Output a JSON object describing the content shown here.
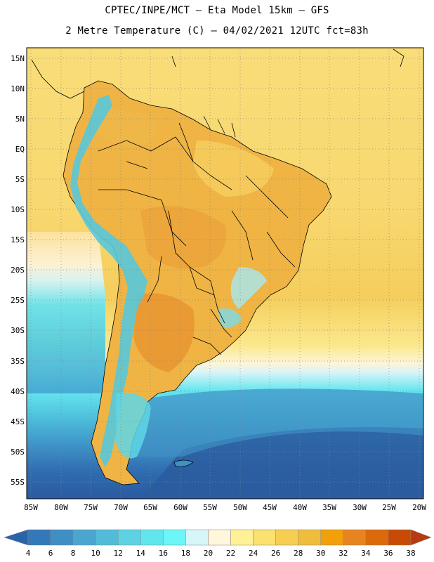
{
  "header": {
    "line1": "CPTEC/INPE/MCT –  Eta Model 15km – GFS",
    "line2": "2 Metre Temperature (C) – 04/02/2021 12UTC fct=83h"
  },
  "map": {
    "lat_labels": [
      "15N",
      "10N",
      "5N",
      "EQ",
      "5S",
      "10S",
      "15S",
      "20S",
      "25S",
      "30S",
      "35S",
      "40S",
      "45S",
      "50S",
      "55S"
    ],
    "lon_labels": [
      "85W",
      "80W",
      "75W",
      "70W",
      "65W",
      "60W",
      "55W",
      "50W",
      "45W",
      "40W",
      "35W",
      "30W",
      "25W",
      "20W"
    ],
    "colors": {
      "ocean_warm": "#f7d86a",
      "land_hot": "#eaa93a",
      "andes_cool": "#58c8dc"
    }
  },
  "colorbar": {
    "labels": [
      "4",
      "6",
      "8",
      "10",
      "12",
      "14",
      "16",
      "18",
      "20",
      "22",
      "24",
      "26",
      "28",
      "30",
      "32",
      "34",
      "36",
      "38"
    ],
    "colors": [
      "#2a64a8",
      "#3378b8",
      "#3f8ec4",
      "#4aa6cf",
      "#52bcd8",
      "#5cd2e2",
      "#62e6ee",
      "#6cf6f8",
      "#d6f6fa",
      "#fff6dc",
      "#fef196",
      "#fbe170",
      "#f6cf52",
      "#efbd3c",
      "#f2a008",
      "#e88420",
      "#dc6a0a",
      "#c84a04",
      "#b83a10"
    ]
  }
}
